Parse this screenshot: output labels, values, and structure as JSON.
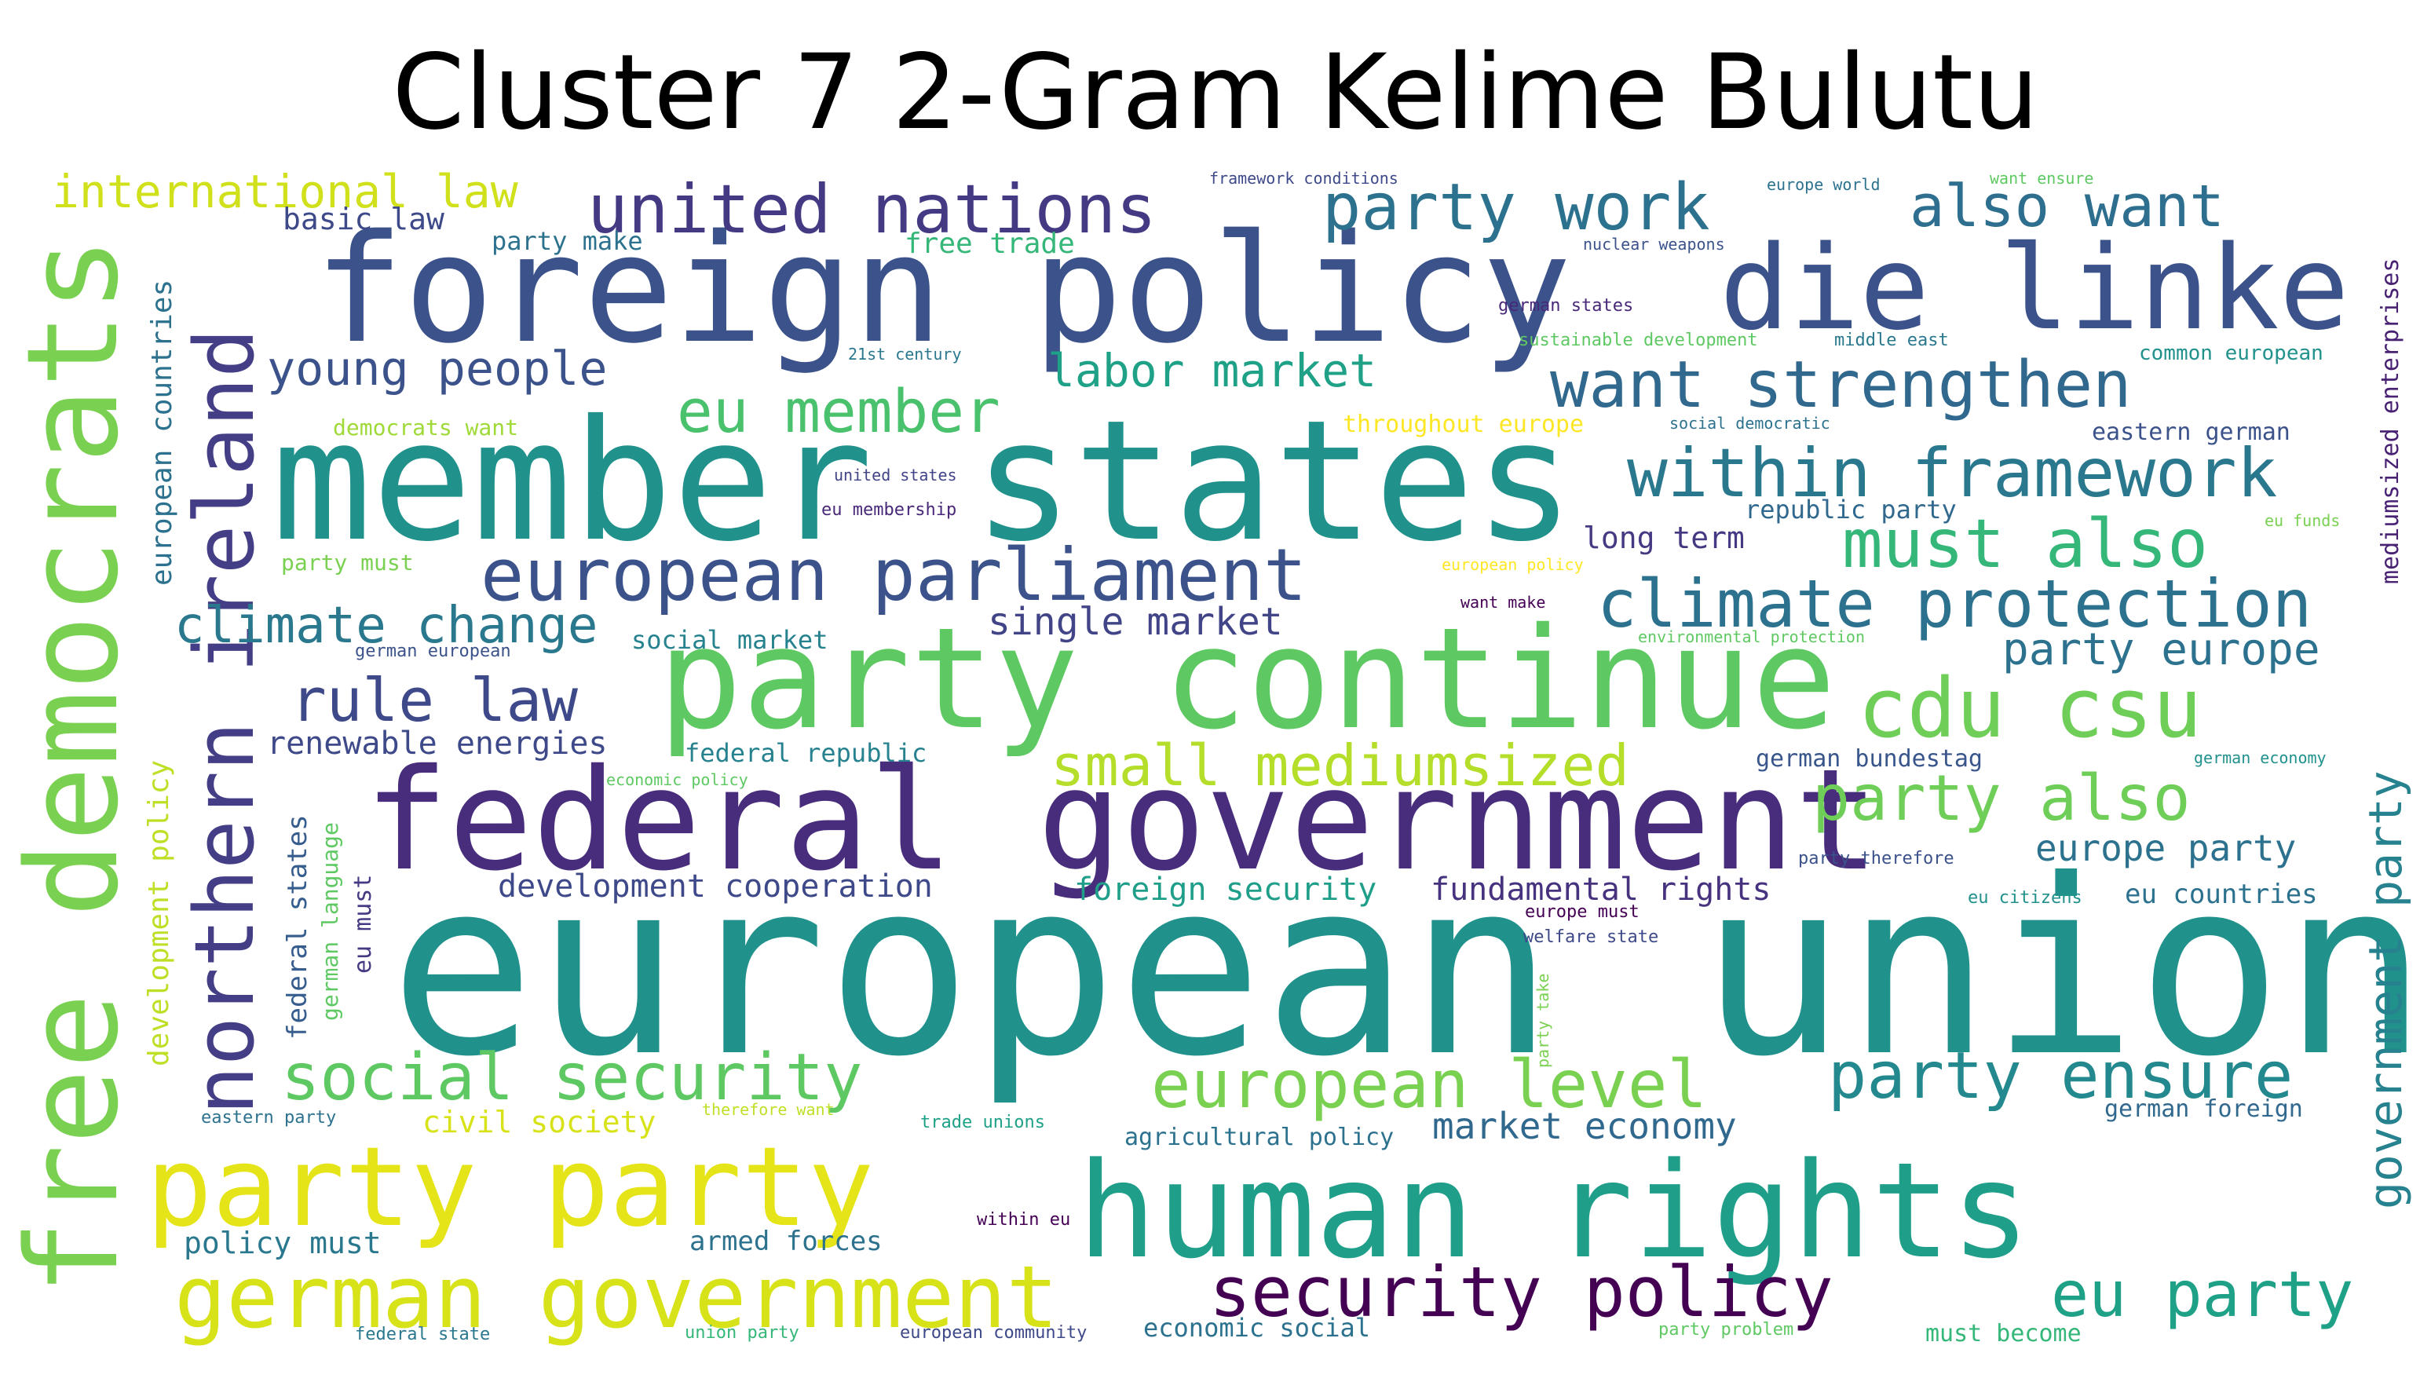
{
  "title": "Cluster 7 2-Gram Kelime Bulutu",
  "words": [
    {
      "text": "european union",
      "color": "#21918c"
    },
    {
      "text": "member states",
      "color": "#21918c"
    },
    {
      "text": "foreign policy",
      "color": "#3b528b"
    },
    {
      "text": "party continue",
      "color": "#5ec962"
    },
    {
      "text": "federal government",
      "color": "#472d7b"
    },
    {
      "text": "human rights",
      "color": "#1f9e89"
    },
    {
      "text": "free democrats",
      "color": "#7ad151"
    },
    {
      "text": "die linke",
      "color": "#3b528b"
    },
    {
      "text": "party party",
      "color": "#e5e419"
    },
    {
      "text": "northern ireland",
      "color": "#433e85"
    },
    {
      "text": "german government",
      "color": "#d8e219"
    },
    {
      "text": "united nations",
      "color": "#443983"
    },
    {
      "text": "european parliament",
      "color": "#3b528b"
    },
    {
      "text": "security policy",
      "color": "#440154"
    },
    {
      "text": "within framework",
      "color": "#2a788e"
    },
    {
      "text": "climate protection",
      "color": "#2c728e"
    },
    {
      "text": "cdu csu",
      "color": "#6ece58"
    },
    {
      "text": "european level",
      "color": "#7ad151"
    },
    {
      "text": "social security",
      "color": "#5ec962"
    },
    {
      "text": "want strengthen",
      "color": "#31688e"
    },
    {
      "text": "party work",
      "color": "#2c728e"
    },
    {
      "text": "party ensure",
      "color": "#23898e"
    },
    {
      "text": "small mediumsized",
      "color": "#b5de2b"
    },
    {
      "text": "must also",
      "color": "#35b779"
    },
    {
      "text": "eu party",
      "color": "#1fa187"
    },
    {
      "text": "also want",
      "color": "#2e6e8e"
    },
    {
      "text": "party also",
      "color": "#6ece58"
    },
    {
      "text": "rule law",
      "color": "#3e4989"
    },
    {
      "text": "eu member",
      "color": "#4ac16d"
    },
    {
      "text": "climate change",
      "color": "#2a788e"
    },
    {
      "text": "young people",
      "color": "#3b528b"
    },
    {
      "text": "labor market",
      "color": "#1fa187"
    },
    {
      "text": "government party",
      "color": "#26828e"
    },
    {
      "text": "international law",
      "color": "#d0e11c"
    },
    {
      "text": "party europe",
      "color": "#2c728e"
    },
    {
      "text": "european countries",
      "color": "#2c728e"
    },
    {
      "text": "development policy",
      "color": "#bddf26"
    },
    {
      "text": "single market",
      "color": "#414487"
    },
    {
      "text": "market economy",
      "color": "#31688e"
    },
    {
      "text": "fundamental rights",
      "color": "#46327e"
    },
    {
      "text": "foreign security",
      "color": "#1f9e89"
    },
    {
      "text": "development cooperation",
      "color": "#3e4989"
    },
    {
      "text": "europe party",
      "color": "#2c728e"
    },
    {
      "text": "civil society",
      "color": "#d8e219"
    },
    {
      "text": "renewable energies",
      "color": "#3e4989"
    },
    {
      "text": "federal states",
      "color": "#365d8d"
    },
    {
      "text": "german language",
      "color": "#5ec962"
    },
    {
      "text": "mediumsized enterprises",
      "color": "#482173"
    },
    {
      "text": "long term",
      "color": "#443983"
    },
    {
      "text": "republic party",
      "color": "#31688e"
    },
    {
      "text": "policy must",
      "color": "#2a788e"
    },
    {
      "text": "armed forces",
      "color": "#2c728e"
    },
    {
      "text": "economic social",
      "color": "#2c728e"
    },
    {
      "text": "german foreign",
      "color": "#31688e"
    },
    {
      "text": "eu countries",
      "color": "#2c728e"
    },
    {
      "text": "federal republic",
      "color": "#26828e"
    },
    {
      "text": "german bundestag",
      "color": "#39568c"
    },
    {
      "text": "eastern german",
      "color": "#3b528b"
    },
    {
      "text": "basic law",
      "color": "#3e4989"
    },
    {
      "text": "free trade",
      "color": "#35b779"
    },
    {
      "text": "party make",
      "color": "#2c728e"
    },
    {
      "text": "social market",
      "color": "#26828e"
    },
    {
      "text": "agricultural policy",
      "color": "#2c728e"
    },
    {
      "text": "eu must",
      "color": "#443983"
    },
    {
      "text": "must become",
      "color": "#35b779"
    },
    {
      "text": "democrats want",
      "color": "#a0da39"
    },
    {
      "text": "throughout europe",
      "color": "#fde725"
    },
    {
      "text": "party must",
      "color": "#7ad151"
    },
    {
      "text": "common european",
      "color": "#21918c"
    },
    {
      "text": "framework conditions",
      "color": "#3e4989"
    },
    {
      "text": "europe world",
      "color": "#2c728e"
    },
    {
      "text": "want ensure",
      "color": "#5ec962"
    },
    {
      "text": "nuclear weapons",
      "color": "#3b528b"
    },
    {
      "text": "german states",
      "color": "#482878"
    },
    {
      "text": "sustainable development",
      "color": "#5ec962"
    },
    {
      "text": "middle east",
      "color": "#2a788e"
    },
    {
      "text": "21st century",
      "color": "#2a788e"
    },
    {
      "text": "social democratic",
      "color": "#2c728e"
    },
    {
      "text": "united states",
      "color": "#414487"
    },
    {
      "text": "eu membership",
      "color": "#482878"
    },
    {
      "text": "eu funds",
      "color": "#7ad151"
    },
    {
      "text": "european policy",
      "color": "#fde725"
    },
    {
      "text": "want make",
      "color": "#440154"
    },
    {
      "text": "german european",
      "color": "#3b528b"
    },
    {
      "text": "environmental protection",
      "color": "#5ec962"
    },
    {
      "text": "economic policy",
      "color": "#5ec962"
    },
    {
      "text": "german economy",
      "color": "#21918c"
    },
    {
      "text": "party therefore",
      "color": "#3b528b"
    },
    {
      "text": "europe must",
      "color": "#440154"
    },
    {
      "text": "eu citizens",
      "color": "#21918c"
    },
    {
      "text": "welfare state",
      "color": "#3e4989"
    },
    {
      "text": "party take",
      "color": "#7ad151"
    },
    {
      "text": "eastern party",
      "color": "#2c728e"
    },
    {
      "text": "therefore want",
      "color": "#bddf26"
    },
    {
      "text": "trade unions",
      "color": "#1fa187"
    },
    {
      "text": "within eu",
      "color": "#440154"
    },
    {
      "text": "federal state",
      "color": "#2a788e"
    },
    {
      "text": "union party",
      "color": "#35b779"
    },
    {
      "text": "european community",
      "color": "#3e4989"
    },
    {
      "text": "party problem",
      "color": "#5ec962"
    }
  ]
}
